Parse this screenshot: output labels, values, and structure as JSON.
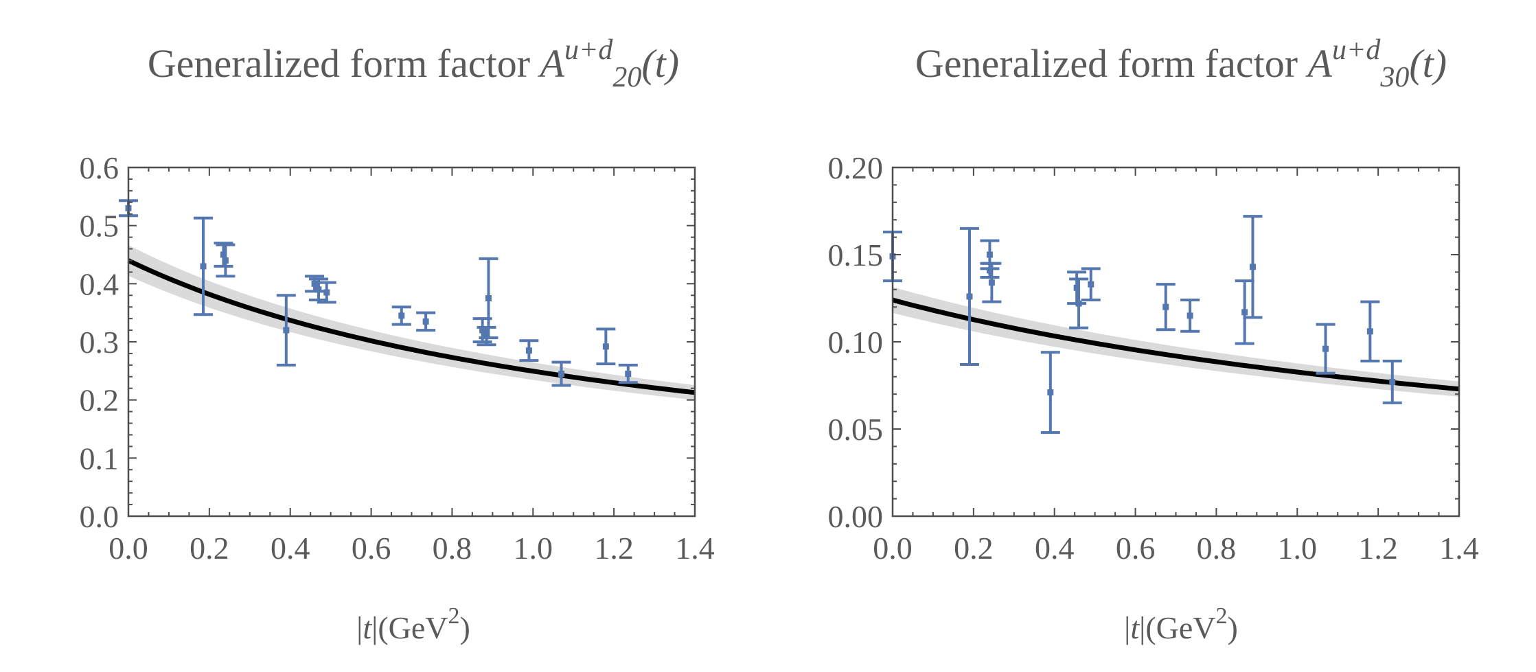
{
  "chart_data": [
    {
      "type": "scatter",
      "title_prefix": "Generalized form factor ",
      "title_sym": "A",
      "title_sup": "u+d",
      "title_sub": "20",
      "title_arg": "(t)",
      "xlabel_pre": "|",
      "xlabel_var": "t",
      "xlabel_unit": "|(GeV",
      "xlabel_exp": "2",
      "xlabel_post": ")",
      "xlim": [
        0,
        1.4
      ],
      "ylim": [
        0,
        0.6
      ],
      "xticks": [
        0.0,
        0.2,
        0.4,
        0.6,
        0.8,
        1.0,
        1.2,
        1.4
      ],
      "xtick_labels": [
        "0.0",
        "0.2",
        "0.4",
        "0.6",
        "0.8",
        "1.0",
        "1.2",
        "1.4"
      ],
      "yticks": [
        0.0,
        0.1,
        0.2,
        0.3,
        0.4,
        0.5,
        0.6
      ],
      "ytick_labels": [
        "0.0",
        "0.1",
        "0.2",
        "0.3",
        "0.4",
        "0.5",
        "0.6"
      ],
      "points": [
        {
          "x": 0.0,
          "y": 0.53,
          "err": 0.013
        },
        {
          "x": 0.185,
          "y": 0.43,
          "err": 0.083
        },
        {
          "x": 0.235,
          "y": 0.45,
          "err": 0.02
        },
        {
          "x": 0.24,
          "y": 0.44,
          "err": 0.027
        },
        {
          "x": 0.39,
          "y": 0.32,
          "err": 0.06
        },
        {
          "x": 0.46,
          "y": 0.4,
          "err": 0.013
        },
        {
          "x": 0.47,
          "y": 0.39,
          "err": 0.018
        },
        {
          "x": 0.49,
          "y": 0.385,
          "err": 0.017
        },
        {
          "x": 0.675,
          "y": 0.345,
          "err": 0.015
        },
        {
          "x": 0.735,
          "y": 0.335,
          "err": 0.015
        },
        {
          "x": 0.875,
          "y": 0.32,
          "err": 0.02
        },
        {
          "x": 0.89,
          "y": 0.375,
          "err": 0.068
        },
        {
          "x": 0.885,
          "y": 0.31,
          "err": 0.015
        },
        {
          "x": 0.99,
          "y": 0.285,
          "err": 0.017
        },
        {
          "x": 1.07,
          "y": 0.245,
          "err": 0.02
        },
        {
          "x": 1.18,
          "y": 0.292,
          "err": 0.03
        },
        {
          "x": 1.235,
          "y": 0.245,
          "err": 0.015
        }
      ],
      "fit": {
        "A0": 0.44,
        "M2": 1.31,
        "rel_band": 0.06
      }
    },
    {
      "type": "scatter",
      "title_prefix": "Generalized form factor ",
      "title_sym": "A",
      "title_sup": "u+d",
      "title_sub": "30",
      "title_arg": "(t)",
      "xlabel_pre": "|",
      "xlabel_var": "t",
      "xlabel_unit": "|(GeV",
      "xlabel_exp": "2",
      "xlabel_post": ")",
      "xlim": [
        0,
        1.4
      ],
      "ylim": [
        0,
        0.2
      ],
      "xticks": [
        0.0,
        0.2,
        0.4,
        0.6,
        0.8,
        1.0,
        1.2,
        1.4
      ],
      "xtick_labels": [
        "0.0",
        "0.2",
        "0.4",
        "0.6",
        "0.8",
        "1.0",
        "1.2",
        "1.4"
      ],
      "yticks": [
        0.0,
        0.05,
        0.1,
        0.15,
        0.2
      ],
      "ytick_labels": [
        "0.00",
        "0.05",
        "0.10",
        "0.15",
        "0.20"
      ],
      "points": [
        {
          "x": 0.0,
          "y": 0.149,
          "err": 0.014
        },
        {
          "x": 0.19,
          "y": 0.126,
          "err": 0.039
        },
        {
          "x": 0.24,
          "y": 0.15,
          "err": 0.008
        },
        {
          "x": 0.24,
          "y": 0.141,
          "err": 0.004
        },
        {
          "x": 0.245,
          "y": 0.134,
          "err": 0.011
        },
        {
          "x": 0.39,
          "y": 0.071,
          "err": 0.023
        },
        {
          "x": 0.455,
          "y": 0.131,
          "err": 0.009
        },
        {
          "x": 0.46,
          "y": 0.122,
          "err": 0.014
        },
        {
          "x": 0.49,
          "y": 0.133,
          "err": 0.009
        },
        {
          "x": 0.675,
          "y": 0.12,
          "err": 0.013
        },
        {
          "x": 0.735,
          "y": 0.115,
          "err": 0.009
        },
        {
          "x": 0.87,
          "y": 0.117,
          "err": 0.018
        },
        {
          "x": 0.89,
          "y": 0.143,
          "err": 0.029
        },
        {
          "x": 1.07,
          "y": 0.096,
          "err": 0.014
        },
        {
          "x": 1.18,
          "y": 0.106,
          "err": 0.017
        },
        {
          "x": 1.235,
          "y": 0.077,
          "err": 0.012
        }
      ],
      "fit": {
        "A0": 0.124,
        "M2": 2.0,
        "rel_band": 0.06
      }
    }
  ]
}
